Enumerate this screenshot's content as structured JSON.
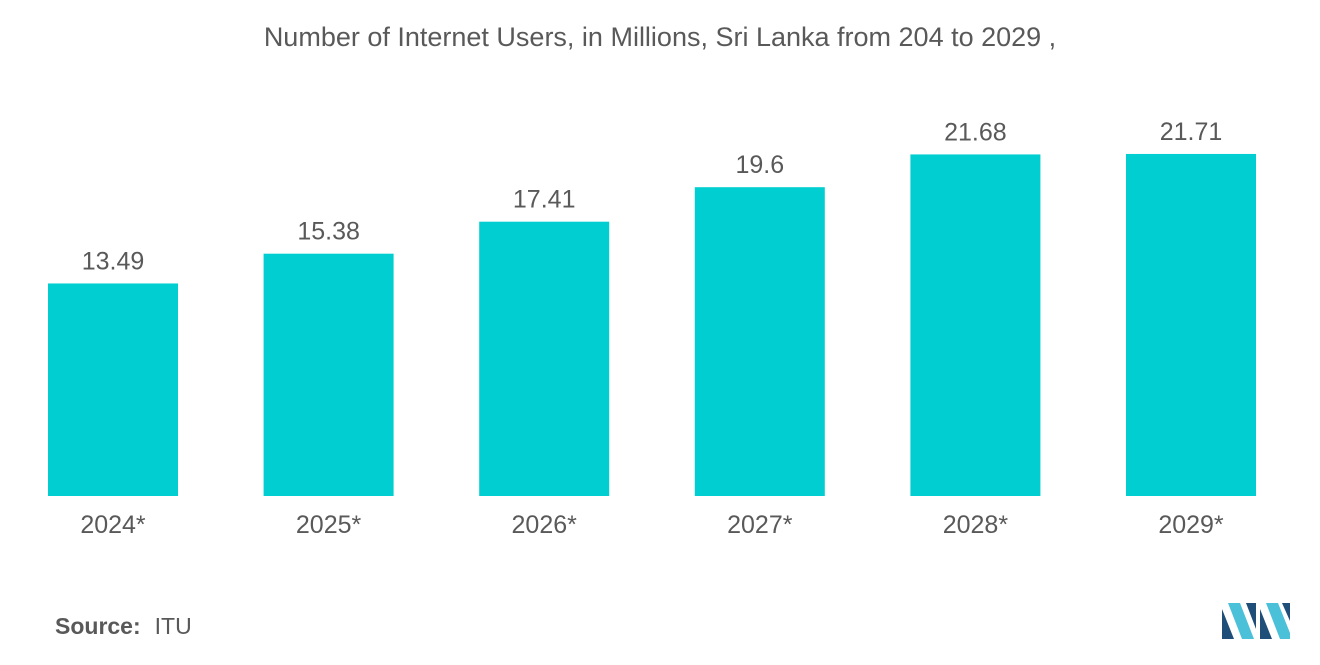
{
  "title": "Number of Internet Users, in Millions, Sri Lanka from 204 to 2029 ,",
  "source": {
    "label": "Source:",
    "value": "ITU"
  },
  "colors": {
    "bar": "#00CED1",
    "text": "#595959",
    "logo_dark": "#1F4E79",
    "logo_light": "#4BC0D9"
  },
  "chart_data": {
    "type": "bar",
    "title": "Number of Internet Users, in Millions, Sri Lanka from 204 to 2029 ,",
    "categories": [
      "2024*",
      "2025*",
      "2026*",
      "2027*",
      "2028*",
      "2029*"
    ],
    "values": [
      13.49,
      15.38,
      17.41,
      19.6,
      21.68,
      21.71
    ],
    "value_labels": [
      "13.49",
      "15.38",
      "17.41",
      "19.6",
      "21.68",
      "21.71"
    ],
    "xlabel": "",
    "ylabel": "",
    "ylim": [
      0,
      24.5
    ],
    "grid": false,
    "legend": "none"
  }
}
